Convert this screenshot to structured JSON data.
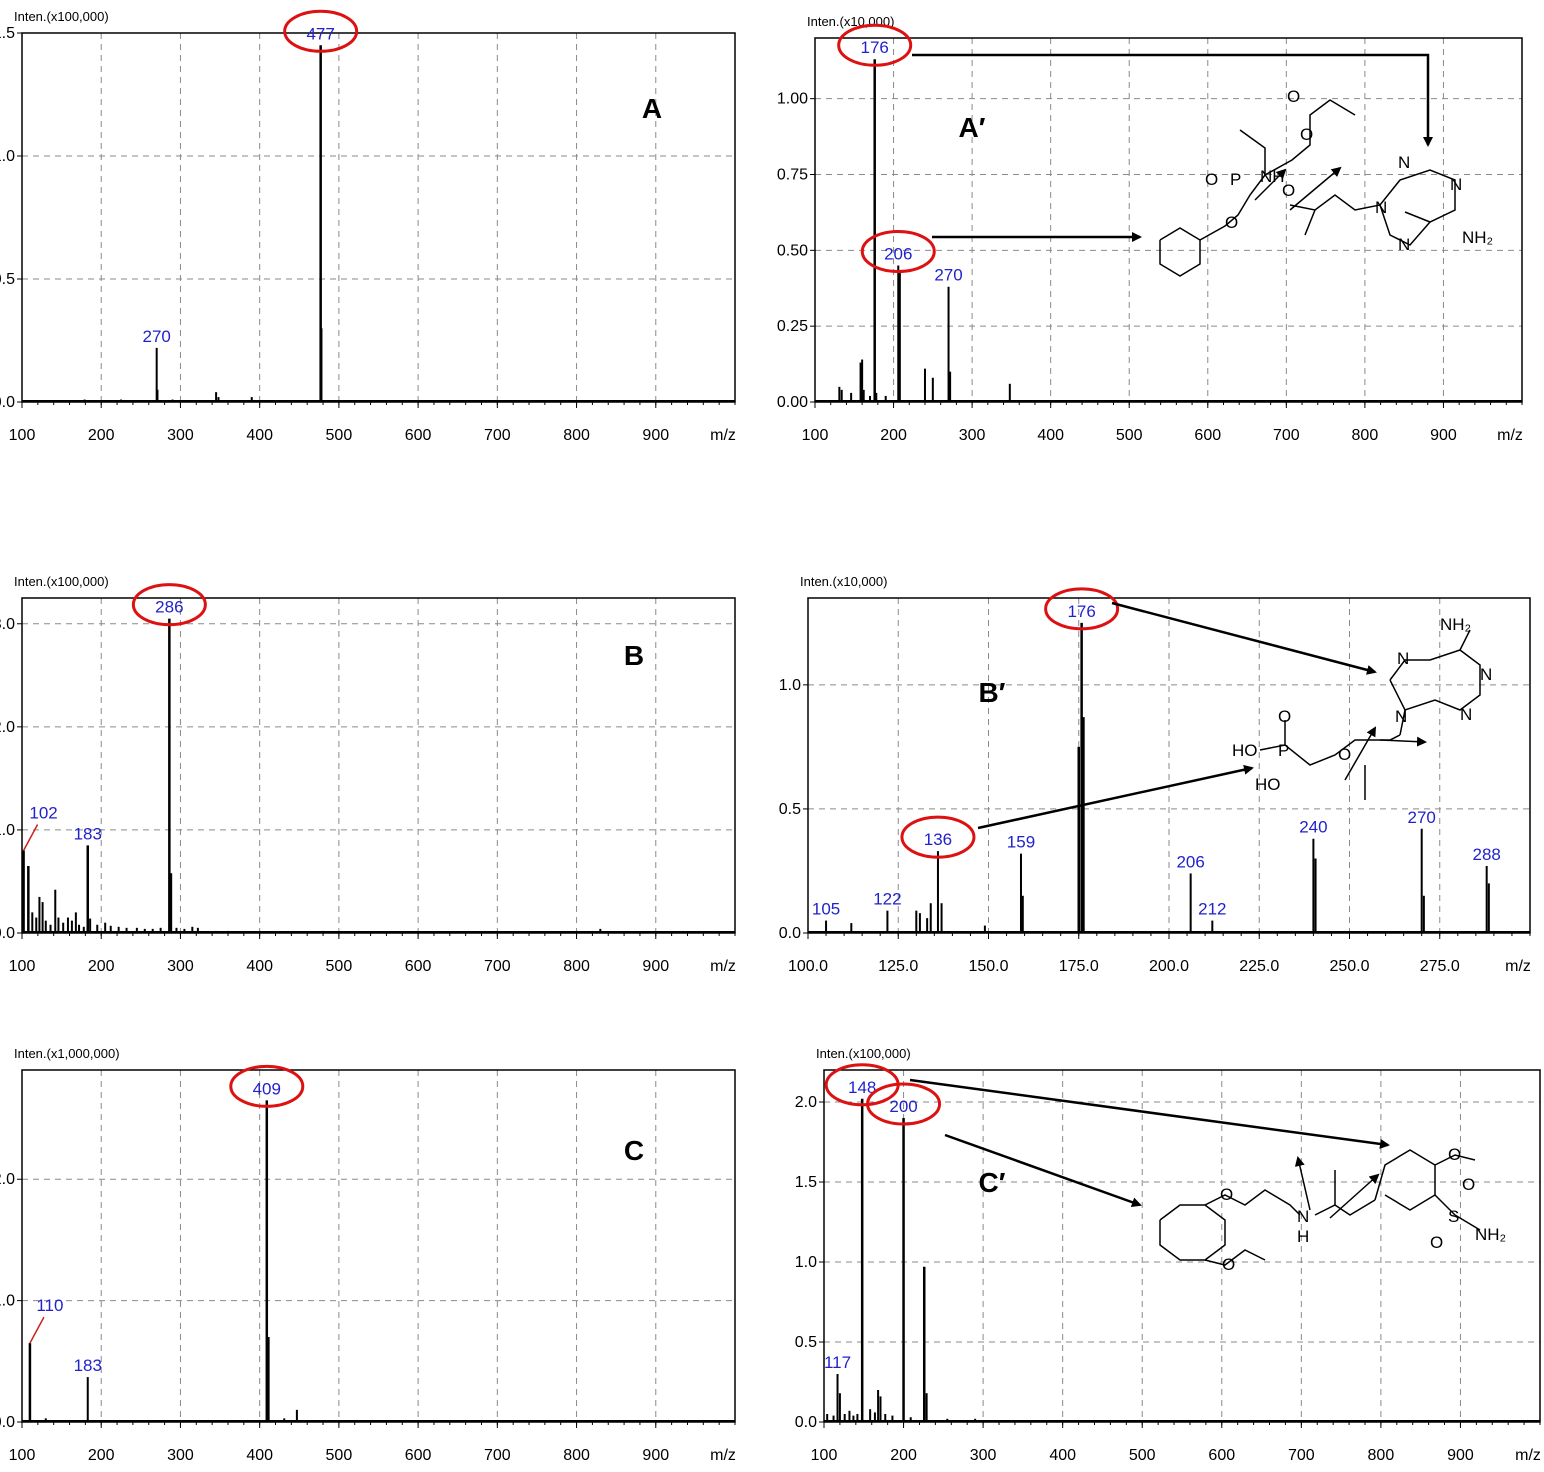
{
  "chart_data": [
    {
      "id": "A",
      "type": "bar",
      "panel_label": "A",
      "unit_label": "Inten.(x100,000)",
      "xlabel": "m/z",
      "xlim": [
        100,
        1000
      ],
      "ylim": [
        0,
        1.5
      ],
      "xticks": [
        "100",
        "200",
        "300",
        "400",
        "500",
        "600",
        "700",
        "800",
        "900"
      ],
      "yticks": [
        {
          "v": 0,
          "t": "0.0"
        },
        {
          "v": 0.5,
          "t": "0.5"
        },
        {
          "v": 1,
          "t": "1.0"
        },
        {
          "v": 1.5,
          "t": "1.5"
        }
      ],
      "peaks": [
        [
          270,
          0.22
        ],
        [
          271,
          0.05
        ],
        [
          345,
          0.04
        ],
        [
          348,
          0.02
        ],
        [
          390,
          0.02
        ],
        [
          477,
          1.45
        ],
        [
          478,
          0.3
        ],
        [
          179,
          0.01
        ],
        [
          225,
          0.01
        ],
        [
          290,
          0.01
        ]
      ],
      "labels": [
        {
          "x": 270,
          "y": 0.22,
          "text": "270"
        },
        {
          "x": 477,
          "y": 1.45,
          "text": "477"
        }
      ],
      "circles": [
        {
          "x": 477,
          "y": 1.45
        }
      ]
    },
    {
      "id": "A2",
      "type": "bar",
      "panel_label": "A′",
      "unit_label": "Inten.(x10,000)",
      "xlabel": "m/z",
      "xlim": [
        100,
        1000
      ],
      "ylim": [
        0,
        1.2
      ],
      "xticks": [
        "100",
        "200",
        "300",
        "400",
        "500",
        "600",
        "700",
        "800",
        "900"
      ],
      "yticks": [
        {
          "v": 0,
          "t": "0.00"
        },
        {
          "v": 0.25,
          "t": "0.25"
        },
        {
          "v": 0.5,
          "t": "0.50"
        },
        {
          "v": 0.75,
          "t": "0.75"
        },
        {
          "v": 1,
          "t": "1.00"
        }
      ],
      "peaks": [
        [
          131,
          0.05
        ],
        [
          134,
          0.04
        ],
        [
          146,
          0.03
        ],
        [
          158,
          0.13
        ],
        [
          160,
          0.14
        ],
        [
          162,
          0.04
        ],
        [
          170,
          0.02
        ],
        [
          176,
          1.13
        ],
        [
          178,
          0.03
        ],
        [
          190,
          0.02
        ],
        [
          206,
          0.45
        ],
        [
          208,
          0.43
        ],
        [
          240,
          0.11
        ],
        [
          250,
          0.08
        ],
        [
          270,
          0.38
        ],
        [
          272,
          0.1
        ],
        [
          348,
          0.06
        ]
      ],
      "labels": [
        {
          "x": 176,
          "y": 1.13,
          "text": "176"
        },
        {
          "x": 206,
          "y": 0.45,
          "text": "206"
        },
        {
          "x": 270,
          "y": 0.38,
          "text": "270"
        }
      ],
      "circles": [
        {
          "x": 176,
          "y": 1.13
        },
        {
          "x": 206,
          "y": 0.45
        }
      ]
    },
    {
      "id": "B",
      "type": "bar",
      "panel_label": "B",
      "unit_label": "Inten.(x100,000)",
      "xlabel": "m/z",
      "xlim": [
        100,
        1000
      ],
      "ylim": [
        0,
        3.25
      ],
      "xticks": [
        "100",
        "200",
        "300",
        "400",
        "500",
        "600",
        "700",
        "800",
        "900"
      ],
      "yticks": [
        {
          "v": 0,
          "t": "0.0"
        },
        {
          "v": 1,
          "t": "1.0"
        },
        {
          "v": 2,
          "t": "2.0"
        },
        {
          "v": 3,
          "t": "3.0"
        }
      ],
      "peaks": [
        [
          102,
          0.8
        ],
        [
          108,
          0.65
        ],
        [
          113,
          0.2
        ],
        [
          118,
          0.15
        ],
        [
          122,
          0.35
        ],
        [
          126,
          0.3
        ],
        [
          130,
          0.12
        ],
        [
          136,
          0.08
        ],
        [
          142,
          0.42
        ],
        [
          146,
          0.15
        ],
        [
          152,
          0.1
        ],
        [
          158,
          0.15
        ],
        [
          163,
          0.12
        ],
        [
          168,
          0.2
        ],
        [
          172,
          0.08
        ],
        [
          178,
          0.06
        ],
        [
          183,
          0.85
        ],
        [
          186,
          0.14
        ],
        [
          195,
          0.08
        ],
        [
          205,
          0.1
        ],
        [
          212,
          0.07
        ],
        [
          222,
          0.06
        ],
        [
          232,
          0.05
        ],
        [
          245,
          0.05
        ],
        [
          255,
          0.04
        ],
        [
          265,
          0.04
        ],
        [
          275,
          0.05
        ],
        [
          286,
          3.05
        ],
        [
          288,
          0.58
        ],
        [
          295,
          0.05
        ],
        [
          305,
          0.04
        ],
        [
          315,
          0.06
        ],
        [
          322,
          0.05
        ],
        [
          345,
          0.02
        ],
        [
          360,
          0.02
        ],
        [
          400,
          0.02
        ],
        [
          480,
          0.02
        ],
        [
          540,
          0.01
        ],
        [
          620,
          0.01
        ],
        [
          830,
          0.04
        ]
      ],
      "labels": [
        {
          "x": 102,
          "y": 0.8,
          "text": "102"
        },
        {
          "x": 183,
          "y": 0.85,
          "text": "183"
        },
        {
          "x": 286,
          "y": 3.05,
          "text": "286"
        }
      ],
      "circles": [
        {
          "x": 286,
          "y": 3.05
        }
      ]
    },
    {
      "id": "B2",
      "type": "bar",
      "panel_label": "B′",
      "unit_label": "Inten.(x10,000)",
      "xlabel": "m/z",
      "xlim": [
        100,
        300
      ],
      "ylim": [
        0,
        1.35
      ],
      "xticks": [
        "100.0",
        "125.0",
        "150.0",
        "175.0",
        "200.0",
        "225.0",
        "250.0",
        "275.0"
      ],
      "yticks": [
        {
          "v": 0,
          "t": "0.0"
        },
        {
          "v": 0.5,
          "t": "0.5"
        },
        {
          "v": 1,
          "t": "1.0"
        }
      ],
      "peaks": [
        [
          105,
          0.05
        ],
        [
          112,
          0.04
        ],
        [
          122,
          0.09
        ],
        [
          130,
          0.09
        ],
        [
          131,
          0.08
        ],
        [
          133,
          0.06
        ],
        [
          134,
          0.12
        ],
        [
          136,
          0.33
        ],
        [
          137,
          0.12
        ],
        [
          149,
          0.03
        ],
        [
          159,
          0.32
        ],
        [
          159.5,
          0.15
        ],
        [
          175,
          0.75
        ],
        [
          175.8,
          1.25
        ],
        [
          176.3,
          0.87
        ],
        [
          206,
          0.24
        ],
        [
          212,
          0.05
        ],
        [
          240,
          0.38
        ],
        [
          240.6,
          0.3
        ],
        [
          270,
          0.42
        ],
        [
          270.6,
          0.15
        ],
        [
          288,
          0.27
        ],
        [
          288.6,
          0.2
        ]
      ],
      "labels": [
        {
          "x": 105,
          "y": 0.05,
          "text": "105"
        },
        {
          "x": 122,
          "y": 0.09,
          "text": "122"
        },
        {
          "x": 136,
          "y": 0.33,
          "text": "136"
        },
        {
          "x": 159,
          "y": 0.32,
          "text": "159"
        },
        {
          "x": 175.8,
          "y": 1.25,
          "text": "176"
        },
        {
          "x": 206,
          "y": 0.24,
          "text": "206"
        },
        {
          "x": 212,
          "y": 0.05,
          "text": "212"
        },
        {
          "x": 240,
          "y": 0.38,
          "text": "240"
        },
        {
          "x": 270,
          "y": 0.42,
          "text": "270"
        },
        {
          "x": 288,
          "y": 0.27,
          "text": "288"
        }
      ],
      "circles": [
        {
          "x": 175.8,
          "y": 1.25
        },
        {
          "x": 136,
          "y": 0.33
        }
      ]
    },
    {
      "id": "C",
      "type": "bar",
      "panel_label": "C",
      "unit_label": "Inten.(x1,000,000)",
      "xlabel": "m/z",
      "xlim": [
        100,
        1000
      ],
      "ylim": [
        0,
        2.9
      ],
      "xticks": [
        "100",
        "200",
        "300",
        "400",
        "500",
        "600",
        "700",
        "800",
        "900"
      ],
      "yticks": [
        {
          "v": 0,
          "t": "0.0"
        },
        {
          "v": 1,
          "t": "1.0"
        },
        {
          "v": 2,
          "t": "2.0"
        }
      ],
      "peaks": [
        [
          110,
          0.65
        ],
        [
          130,
          0.03
        ],
        [
          183,
          0.37
        ],
        [
          409,
          2.65
        ],
        [
          411,
          0.7
        ],
        [
          431,
          0.03
        ],
        [
          447,
          0.1
        ],
        [
          470,
          0.01
        ],
        [
          520,
          0.01
        ],
        [
          590,
          0.01
        ],
        [
          690,
          0.01
        ]
      ],
      "labels": [
        {
          "x": 110,
          "y": 0.65,
          "text": "110"
        },
        {
          "x": 183,
          "y": 0.37,
          "text": "183"
        },
        {
          "x": 409,
          "y": 2.65,
          "text": "409"
        }
      ],
      "circles": [
        {
          "x": 409,
          "y": 2.65
        }
      ]
    },
    {
      "id": "C2",
      "type": "bar",
      "panel_label": "C′",
      "unit_label": "Inten.(x100,000)",
      "xlabel": "m/z",
      "xlim": [
        100,
        1000
      ],
      "ylim": [
        0,
        2.2
      ],
      "xticks": [
        "100",
        "200",
        "300",
        "400",
        "500",
        "600",
        "700",
        "800",
        "900"
      ],
      "yticks": [
        {
          "v": 0,
          "t": "0.0"
        },
        {
          "v": 0.5,
          "t": "0.5"
        },
        {
          "v": 1,
          "t": "1.0"
        },
        {
          "v": 1.5,
          "t": "1.5"
        },
        {
          "v": 2,
          "t": "2.0"
        }
      ],
      "peaks": [
        [
          104,
          0.05
        ],
        [
          112,
          0.04
        ],
        [
          117,
          0.3
        ],
        [
          120,
          0.18
        ],
        [
          126,
          0.05
        ],
        [
          132,
          0.07
        ],
        [
          137,
          0.04
        ],
        [
          142,
          0.05
        ],
        [
          148,
          2.02
        ],
        [
          158,
          0.08
        ],
        [
          164,
          0.06
        ],
        [
          168,
          0.2
        ],
        [
          171,
          0.16
        ],
        [
          177,
          0.05
        ],
        [
          186,
          0.04
        ],
        [
          200,
          1.9
        ],
        [
          209,
          0.03
        ],
        [
          226,
          0.97
        ],
        [
          229,
          0.18
        ],
        [
          255,
          0.02
        ],
        [
          290,
          0.02
        ],
        [
          370,
          0.01
        ],
        [
          500,
          0.01
        ]
      ],
      "labels": [
        {
          "x": 117,
          "y": 0.3,
          "text": "117"
        },
        {
          "x": 148,
          "y": 2.02,
          "text": "148"
        },
        {
          "x": 200,
          "y": 1.9,
          "text": "200"
        }
      ],
      "circles": [
        {
          "x": 148,
          "y": 2.02
        },
        {
          "x": 200,
          "y": 1.9
        }
      ]
    }
  ],
  "structures": {
    "amine": "NH₂",
    "nitrogen": "N",
    "n_h": "NH",
    "h": "H",
    "oxygen": "O",
    "phosphorus": "P",
    "sulfur": "S",
    "hydroxyl": "HO"
  }
}
